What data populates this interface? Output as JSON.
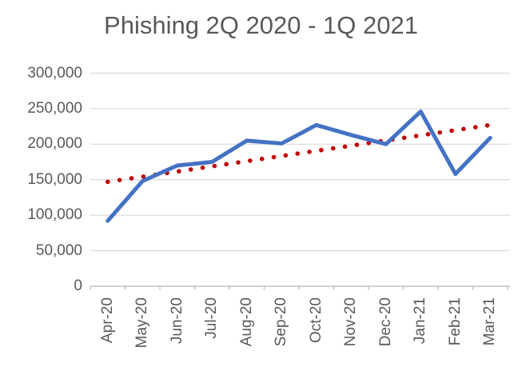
{
  "chart_data": {
    "type": "line",
    "title": "Phishing 2Q 2020 - 1Q 2021",
    "categories": [
      "Apr-20",
      "May-20",
      "Jun-20",
      "Jul-20",
      "Aug-20",
      "Sep-20",
      "Oct-20",
      "Nov-20",
      "Dec-20",
      "Jan-21",
      "Feb-21",
      "Mar-21"
    ],
    "series": [
      {
        "name": "phishing-attacks-monthly",
        "values": [
          92000,
          148000,
          170000,
          175000,
          205000,
          201000,
          227000,
          213000,
          200000,
          246000,
          158000,
          209000
        ],
        "color": "#4472c4",
        "style": "solid"
      }
    ],
    "trendline": {
      "name": "linear-trendline",
      "start_value": 147000,
      "end_value": 227000,
      "color": "#c00000",
      "style": "dotted"
    },
    "xlabel": "",
    "ylabel": "",
    "ylim": [
      0,
      300000
    ],
    "y_ticks": [
      0,
      50000,
      100000,
      150000,
      200000,
      250000,
      300000
    ],
    "y_tick_labels": [
      "0",
      "50,000",
      "100,000",
      "150,000",
      "200,000",
      "250,000",
      "300,000"
    ],
    "grid": true,
    "legend": false
  },
  "colors": {
    "title_text": "#595959",
    "axis_text": "#595959",
    "gridline": "#d9d9d9",
    "axis_line": "#bfbfbf",
    "background": "#ffffff"
  }
}
